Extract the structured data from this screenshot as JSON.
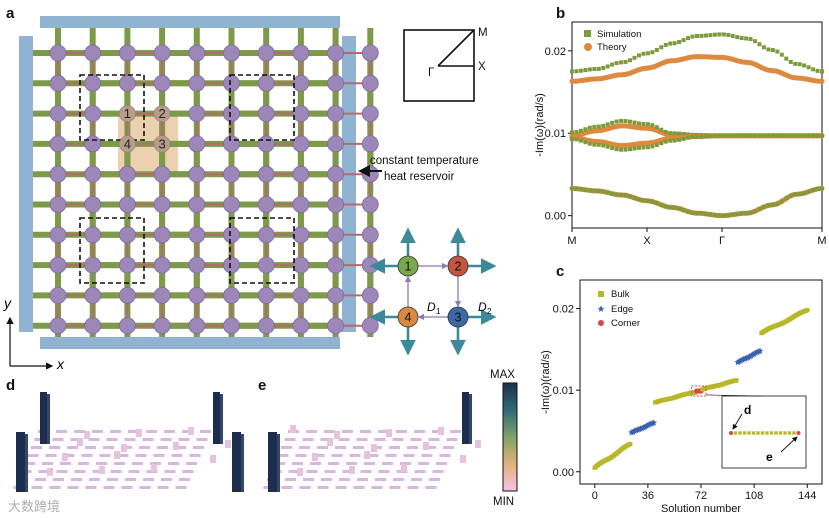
{
  "panel_labels": {
    "a": "a",
    "b": "b",
    "c": "c",
    "d": "d",
    "e": "e"
  },
  "panel_a": {
    "reservoir_label_line1": "constant temperature",
    "reservoir_label_line2": "heat reservoir",
    "axis_x": "x",
    "axis_y": "y",
    "site_labels": [
      "1",
      "2",
      "4",
      "3"
    ],
    "bz_labels": {
      "M": "M",
      "X": "X",
      "Gamma": "Γ"
    },
    "unit_cell": {
      "n": [
        "1",
        "2",
        "3",
        "4"
      ],
      "D1": "D",
      "D1_sub": "1",
      "D2": "D",
      "D2_sub": "2"
    },
    "colors": {
      "node": "#9c87b8",
      "coupling_intra": "#b56b6b",
      "coupling_inter": "#7d9a4a",
      "reservoir": "#8fb3d1",
      "highlight": "#e9c9a3",
      "site1": "#7aa84e",
      "site2": "#c0573e",
      "site3": "#3d6aa6",
      "site4": "#d98940",
      "arrow": "#3c8a99"
    }
  },
  "chart_data": [
    {
      "panel": "b",
      "type": "line",
      "ylabel": "-Im(ω)(rad/s)",
      "xticks": [
        "M",
        "X",
        "Γ",
        "M"
      ],
      "yticks": [
        "0.00",
        "0.01",
        "0.02"
      ],
      "ylim": [
        -0.0015,
        0.0235
      ],
      "legend": [
        {
          "name": "Simulation",
          "color": "#7d9a3c",
          "marker": "square"
        },
        {
          "name": "Theory",
          "color": "#dd8a3e",
          "marker": "circle"
        }
      ],
      "legend_position": "top-left",
      "x": [
        0,
        0.1,
        0.2,
        0.3,
        0.4,
        0.5,
        0.6,
        0.7,
        0.8,
        0.9,
        1.0
      ],
      "series": [
        {
          "values_sim": [
            0.0175,
            0.0178,
            0.0186,
            0.0197,
            0.0209,
            0.0218,
            0.022,
            0.0215,
            0.0201,
            0.0184,
            0.0175
          ],
          "values_theory": [
            0.0163,
            0.0166,
            0.0171,
            0.0179,
            0.0188,
            0.0193,
            0.0192,
            0.0186,
            0.0176,
            0.0167,
            0.0163
          ]
        },
        {
          "values_sim": [
            0.0101,
            0.0108,
            0.0115,
            0.0111,
            0.01,
            0.0098,
            0.0097,
            0.0097,
            0.0097,
            0.0097,
            0.0097
          ],
          "values_theory": [
            0.0097,
            0.0103,
            0.0109,
            0.0106,
            0.0098,
            0.0097,
            0.0097,
            0.0097,
            0.0097,
            0.0097,
            0.0097
          ]
        },
        {
          "values_sim": [
            0.0093,
            0.0086,
            0.008,
            0.0083,
            0.0091,
            0.0096,
            0.0097,
            0.0097,
            0.0097,
            0.0097,
            0.0097
          ],
          "values_theory": [
            0.0095,
            0.009,
            0.0085,
            0.0088,
            0.0094,
            0.0096,
            0.0097,
            0.0097,
            0.0097,
            0.0097,
            0.0097
          ]
        },
        {
          "values_sim": [
            0.0033,
            0.003,
            0.0025,
            0.0018,
            0.001,
            0.0003,
            0.0,
            0.0003,
            0.0013,
            0.0026,
            0.0033
          ],
          "values_theory": [
            0.0033,
            0.003,
            0.0025,
            0.0018,
            0.001,
            0.0003,
            0.0,
            0.0003,
            0.0013,
            0.0026,
            0.0033
          ]
        }
      ]
    },
    {
      "panel": "c",
      "type": "scatter",
      "xlabel": "Solution number",
      "ylabel": "-Im(ω)(rad/s)",
      "xticks": [
        "0",
        "36",
        "72",
        "108",
        "144"
      ],
      "xtick_values": [
        0,
        36,
        72,
        108,
        144
      ],
      "yticks": [
        "0.00",
        "0.01",
        "0.02"
      ],
      "xlim": [
        -10,
        154
      ],
      "ylim": [
        -0.0015,
        0.0235
      ],
      "legend": [
        {
          "name": "Bulk",
          "color": "#b6b82a",
          "marker": "square"
        },
        {
          "name": "Edge",
          "color": "#3a5fb0",
          "marker": "star"
        },
        {
          "name": "Corner",
          "color": "#d94545",
          "marker": "circle"
        }
      ],
      "legend_position": "top-left",
      "segments": [
        {
          "kind": "bulk",
          "from": 0,
          "to": 24,
          "y0": 0.0005,
          "y1": 0.0034
        },
        {
          "kind": "edge",
          "from": 25,
          "to": 40,
          "y0": 0.0048,
          "y1": 0.006
        },
        {
          "kind": "bulk",
          "from": 41,
          "to": 64,
          "y0": 0.0085,
          "y1": 0.0096
        },
        {
          "kind": "bulk",
          "from": 65,
          "to": 68,
          "y0": 0.0097,
          "y1": 0.0097
        },
        {
          "kind": "corner",
          "from": 69,
          "to": 72,
          "y0": 0.0099,
          "y1": 0.0099
        },
        {
          "kind": "bulk",
          "from": 73,
          "to": 96,
          "y0": 0.0101,
          "y1": 0.0112
        },
        {
          "kind": "edge",
          "from": 97,
          "to": 112,
          "y0": 0.0134,
          "y1": 0.0148
        },
        {
          "kind": "bulk",
          "from": 113,
          "to": 144,
          "y0": 0.017,
          "y1": 0.0198
        }
      ],
      "inset_labels": {
        "d": "d",
        "e": "e"
      }
    }
  ],
  "colorbar": {
    "max": "MAX",
    "min": "MIN"
  },
  "watermark": "大数跨境"
}
